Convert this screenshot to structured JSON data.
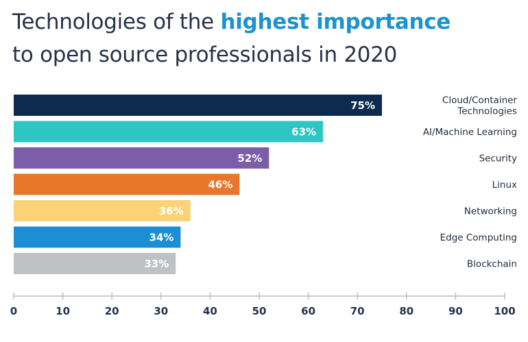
{
  "title": {
    "line1_prefix": "Technologies of the ",
    "line1_highlight": "highest importance",
    "line2": "to open source professionals in 2020"
  },
  "colors": {
    "title_text": "#25324a",
    "title_highlight": "#1c93cf",
    "axis": "#b8bec6"
  },
  "chart_data": {
    "type": "bar",
    "orientation": "horizontal",
    "categories": [
      "Cloud/Container Technologies",
      "AI/Machine Learning",
      "Security",
      "Linux",
      "Networking",
      "Edge Computing",
      "Blockchain"
    ],
    "category_label_lines": [
      [
        "Cloud/Container",
        "Technologies"
      ],
      [
        "AI/Machine Learning"
      ],
      [
        "Security"
      ],
      [
        "Linux"
      ],
      [
        "Networking"
      ],
      [
        "Edge Computing"
      ],
      [
        "Blockchain"
      ]
    ],
    "values": [
      75,
      63,
      52,
      46,
      36,
      34,
      33
    ],
    "value_labels": [
      "75%",
      "63%",
      "52%",
      "46%",
      "36%",
      "34%",
      "33%"
    ],
    "colors": [
      "#0c2b4e",
      "#2ec6c2",
      "#7b5ea7",
      "#e8772c",
      "#fbd277",
      "#1c8fd4",
      "#bfc2c5"
    ],
    "xlim": [
      0,
      100
    ],
    "xticks": [
      0,
      10,
      20,
      30,
      40,
      50,
      60,
      70,
      80,
      90,
      100
    ],
    "xlabel": "",
    "ylabel": "",
    "grid": false,
    "legend": false
  }
}
